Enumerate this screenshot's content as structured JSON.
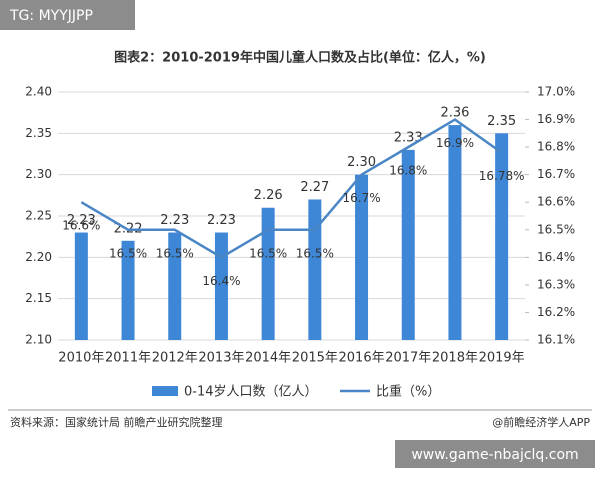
{
  "badge_top": "TG: MYYJJPP",
  "source": "资料来源：国家统计局 前瞻产业研究院整理",
  "brand": "@前瞻经济学人APP",
  "badge_bottom": "www.game-nbajclq.com",
  "chart_data": {
    "type": "bar_line",
    "title": "图表2：2010-2019年中国儿童人口数及占比(单位：亿人，%)",
    "categories": [
      "2010年",
      "2011年",
      "2012年",
      "2013年",
      "2014年",
      "2015年",
      "2016年",
      "2017年",
      "2018年",
      "2019年"
    ],
    "series": [
      {
        "name": "0-14岁人口数（亿人）",
        "color": "#3e87d6",
        "values": [
          2.23,
          2.22,
          2.23,
          2.23,
          2.26,
          2.27,
          2.3,
          2.33,
          2.36,
          2.35
        ],
        "value_labels": [
          "2.23",
          "2.22",
          "2.23",
          "2.23",
          "2.26",
          "2.27",
          "2.30",
          "2.33",
          "2.36",
          "2.35"
        ]
      },
      {
        "name": "比重（%）",
        "color": "#4a86c5",
        "axis": "y2",
        "values": [
          16.6,
          16.5,
          16.5,
          16.4,
          16.5,
          16.5,
          16.7,
          16.8,
          16.9,
          16.78
        ],
        "value_labels": [
          "16.6%",
          "16.5%",
          "16.5%",
          "16.4%",
          "16.5%",
          "16.5%",
          "16.7%",
          "16.8%",
          "16.9%",
          "16.78%"
        ]
      }
    ],
    "ylim": [
      2.1,
      2.4
    ],
    "yticks": [
      {
        "value": 2.1,
        "label": "2.10"
      },
      {
        "value": 2.15,
        "label": "2.15"
      },
      {
        "value": 2.2,
        "label": "2.20"
      },
      {
        "value": 2.25,
        "label": "2.25"
      },
      {
        "value": 2.3,
        "label": "2.30"
      },
      {
        "value": 2.35,
        "label": "2.35"
      },
      {
        "value": 2.4,
        "label": "2.40"
      }
    ],
    "y2lim": [
      16.1,
      17.0
    ],
    "y2ticks": [
      {
        "value": 16.1,
        "label": "16.1%"
      },
      {
        "value": 16.2,
        "label": "16.2%"
      },
      {
        "value": 16.3,
        "label": "16.3%"
      },
      {
        "value": 16.4,
        "label": "16.4%"
      },
      {
        "value": 16.5,
        "label": "16.5%"
      },
      {
        "value": 16.6,
        "label": "16.6%"
      },
      {
        "value": 16.7,
        "label": "16.7%"
      },
      {
        "value": 16.8,
        "label": "16.8%"
      },
      {
        "value": 16.9,
        "label": "16.9%"
      },
      {
        "value": 17.0,
        "label": "17.0%"
      }
    ],
    "grid": true
  }
}
